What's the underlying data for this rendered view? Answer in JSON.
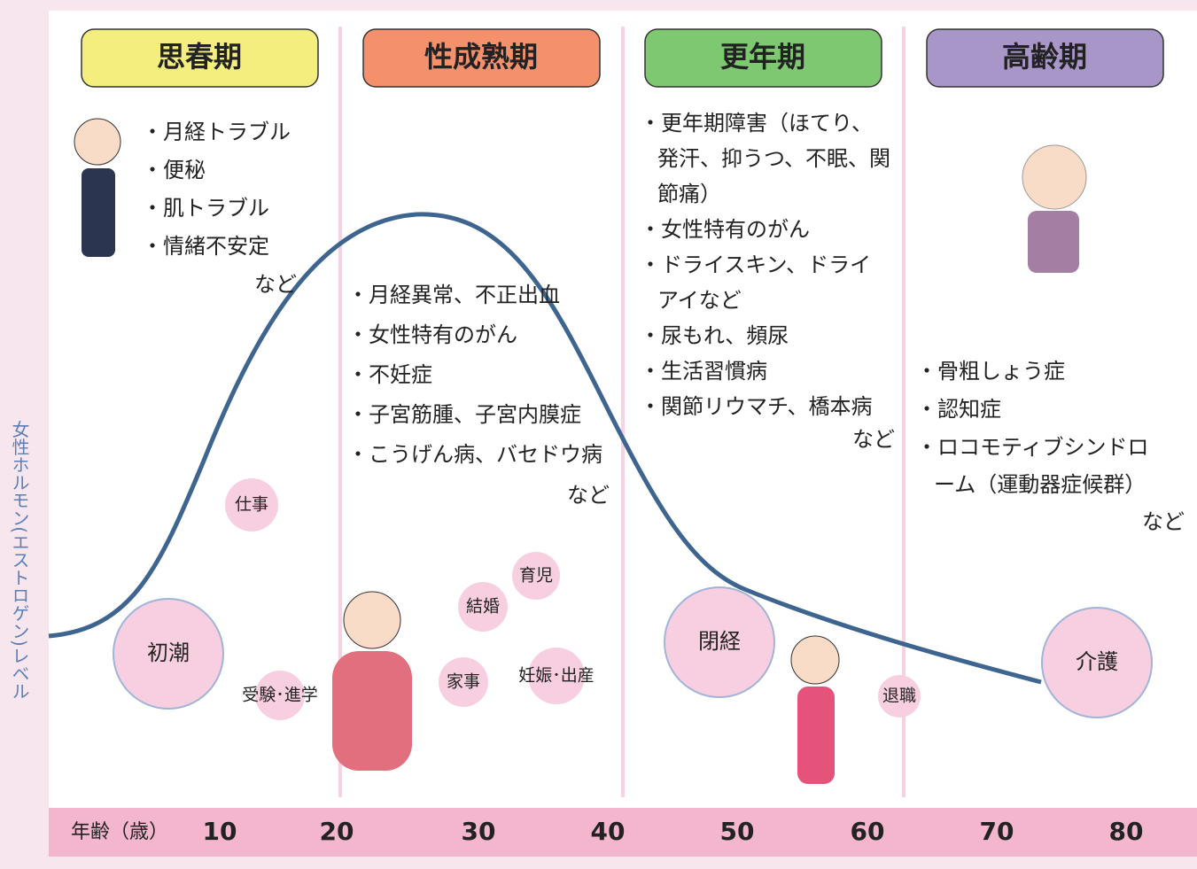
{
  "y_axis_label": "女性ホルモン(エストロゲン)レベル",
  "x_axis": {
    "label": "年齢（歳）",
    "ticks": [
      "10",
      "20",
      "30",
      "40",
      "50",
      "60",
      "70",
      "80"
    ]
  },
  "stages": [
    {
      "title": "思春期",
      "items": [
        [
          "・月経トラブル"
        ],
        [
          "・便秘"
        ],
        [
          "・肌トラブル"
        ],
        [
          "・情緒不安定"
        ]
      ],
      "etc": "など"
    },
    {
      "title": "性成熟期",
      "items": [
        [
          "・月経異常、不正出血"
        ],
        [
          "・女性特有のがん"
        ],
        [
          "・不妊症"
        ],
        [
          "・子宮筋腫、子宮内膜症"
        ],
        [
          "・こうげん病、バセドウ病"
        ]
      ],
      "etc": "など"
    },
    {
      "title": "更年期",
      "items": [
        [
          "・更年期障害（ほてり、",
          "発汗、抑うつ、不眠、関",
          "節痛）"
        ],
        [
          "・女性特有のがん"
        ],
        [
          "・ドライスキン、ドライ",
          "アイなど"
        ],
        [
          "・尿もれ、頻尿"
        ],
        [
          "・生活習慣病"
        ],
        [
          "・関節リウマチ、橋本病"
        ]
      ],
      "etc": "など"
    },
    {
      "title": "高齢期",
      "items": [
        [
          "・骨粗しょう症"
        ],
        [
          "・認知症"
        ],
        [
          "・ロコモティブシンドロ",
          "ーム（運動器症候群）"
        ]
      ],
      "etc": "など"
    }
  ],
  "events": [
    "初潮",
    "仕事",
    "受験･進学",
    "結婚",
    "育児",
    "家事",
    "妊娠･出産",
    "閉経",
    "退職",
    "介護"
  ]
}
